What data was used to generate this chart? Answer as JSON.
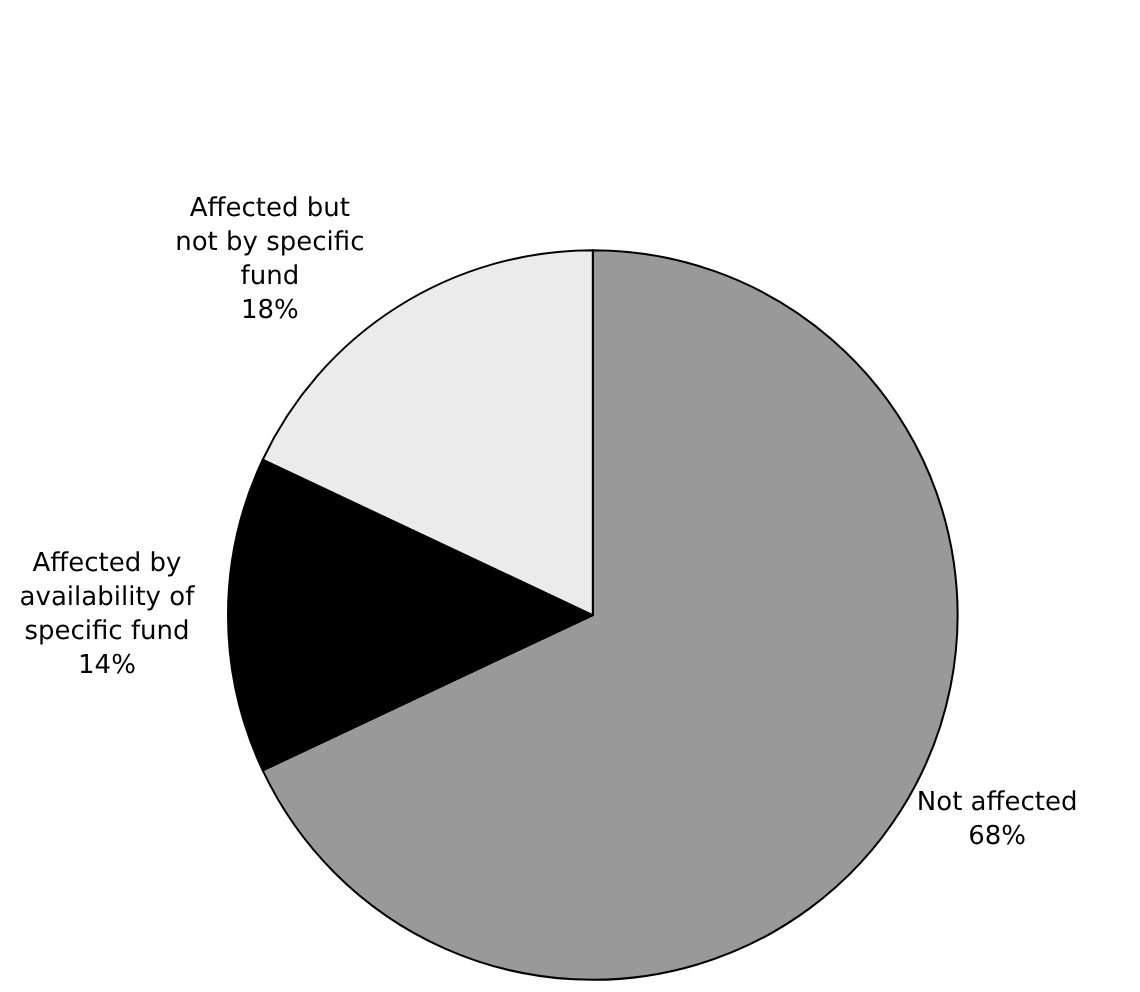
{
  "chart_data": {
    "type": "pie",
    "categories": [
      "Not affected",
      "Affected by availability of specific fund",
      "Affected but not by specific fund"
    ],
    "values": [
      68,
      14,
      18
    ],
    "colors": [
      "#999999",
      "#000000",
      "#ebebeb"
    ],
    "value_labels": [
      "68%",
      "14%",
      "18%"
    ],
    "legend": false
  }
}
